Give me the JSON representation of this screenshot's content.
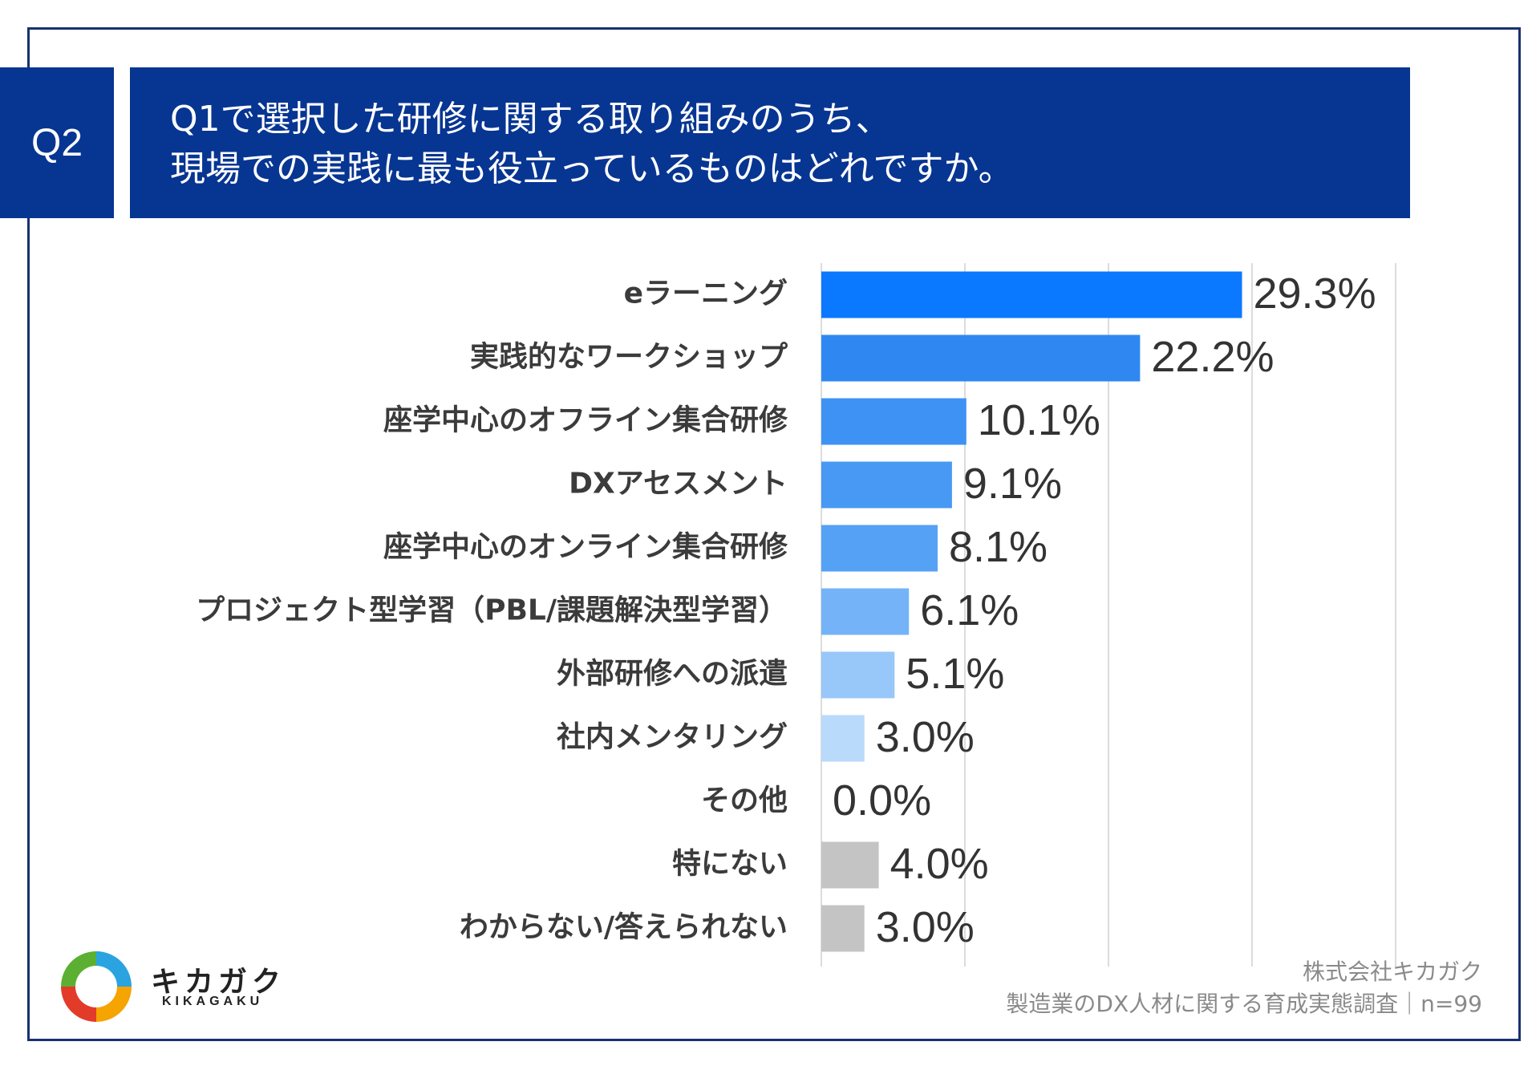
{
  "header": {
    "badge": "Q2",
    "title_line1": "Q1で選択した研修に関する取り組みのうち、",
    "title_line2": "現場での実践に最も役立っているものはどれですか。"
  },
  "chart_data": {
    "type": "bar",
    "orientation": "horizontal",
    "categories": [
      "eラーニング",
      "実践的なワークショップ",
      "座学中心のオフライン集合研修",
      "DXアセスメント",
      "座学中心のオンライン集合研修",
      "プロジェクト型学習（PBL/課題解決型学習）",
      "外部研修への派遣",
      "社内メンタリング",
      "その他",
      "特にない",
      "わからない/答えられない"
    ],
    "values": [
      29.3,
      22.2,
      10.1,
      9.1,
      8.1,
      6.1,
      5.1,
      3.0,
      0.0,
      4.0,
      3.0
    ],
    "value_labels": [
      "29.3%",
      "22.2%",
      "10.1%",
      "9.1%",
      "8.1%",
      "6.1%",
      "5.1%",
      "3.0%",
      "0.0%",
      "4.0%",
      "3.0%"
    ],
    "colors": [
      "#0a78ff",
      "#2f88f2",
      "#3e92f3",
      "#4799f4",
      "#55a1f5",
      "#74b3f7",
      "#98c7f9",
      "#b9dafb",
      "#c4c4c4",
      "#c4c4c4",
      "#c4c4c4"
    ],
    "xlim": [
      0,
      40
    ],
    "gridlines": [
      0,
      10,
      20,
      30,
      40
    ],
    "unit": "%"
  },
  "branding": {
    "logo_text": "キカガク",
    "logo_sub": "KIKAGAKU"
  },
  "footer": {
    "company": "株式会社キカガク",
    "survey": "製造業のDX人材に関する育成実態調査｜n=99"
  }
}
